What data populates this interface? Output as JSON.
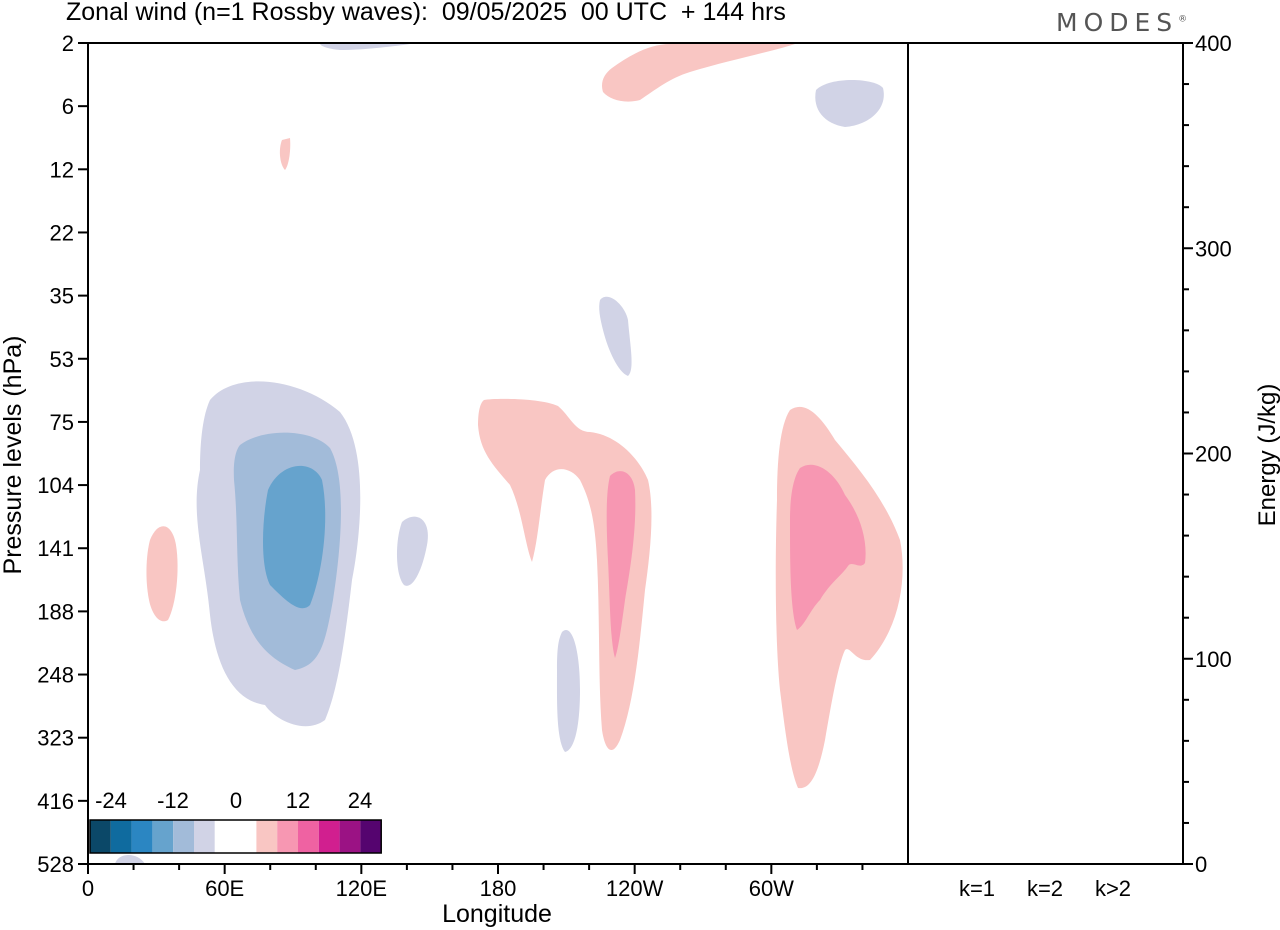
{
  "header": {
    "title": "Zonal wind (n=1 Rossby waves):  09/05/2025  00 UTC  + 144 hrs",
    "logo": "MODES",
    "logo_mark": "®"
  },
  "chart_data": {
    "type": "contour",
    "xlabel": "Longitude",
    "ylabel": "Pressure levels (hPa)",
    "y2label": "Energy (J/kg)",
    "x_ticks": [
      "0",
      "60E",
      "120E",
      "180",
      "120W",
      "60W"
    ],
    "x_range_deg": [
      0,
      360
    ],
    "y_ticks": [
      "2",
      "6",
      "12",
      "22",
      "35",
      "53",
      "75",
      "104",
      "141",
      "188",
      "248",
      "323",
      "416",
      "528"
    ],
    "y_reversed": true,
    "energy_ticks": [
      0,
      100,
      200,
      300,
      400
    ],
    "energy_range": [
      0,
      400
    ],
    "energy_bars": {
      "categories": [
        "k=1",
        "k=2",
        "k>2"
      ],
      "values": [
        0,
        0,
        0
      ]
    },
    "colorbar": {
      "tick_labels": [
        "-24",
        "-12",
        "0",
        "12",
        "24"
      ],
      "colors": [
        "#0b4868",
        "#0f6b9f",
        "#2b86c2",
        "#66a3cd",
        "#a2bbd9",
        "#d1d3e6",
        "#ffffff",
        "#ffffff",
        "#f9c6c3",
        "#f797b2",
        "#ef62a2",
        "#d11f8f",
        "#9b1284",
        "#55046f"
      ]
    },
    "features": [
      {
        "level": -4,
        "lon": 68,
        "level_index": 8.3
      },
      {
        "level": -8,
        "lon": 73,
        "level_index": 8.2
      },
      {
        "level": -12,
        "lon": 78,
        "level_index": 8.1
      },
      {
        "level": 4,
        "lon": 228,
        "level_index": 7.8
      },
      {
        "level": 8,
        "lon": 234,
        "level_index": 8.6
      },
      {
        "level": 4,
        "lon": 296,
        "level_index": 8.5
      },
      {
        "level": 8,
        "lon": 294,
        "level_index": 8.4
      }
    ],
    "grid": false
  }
}
